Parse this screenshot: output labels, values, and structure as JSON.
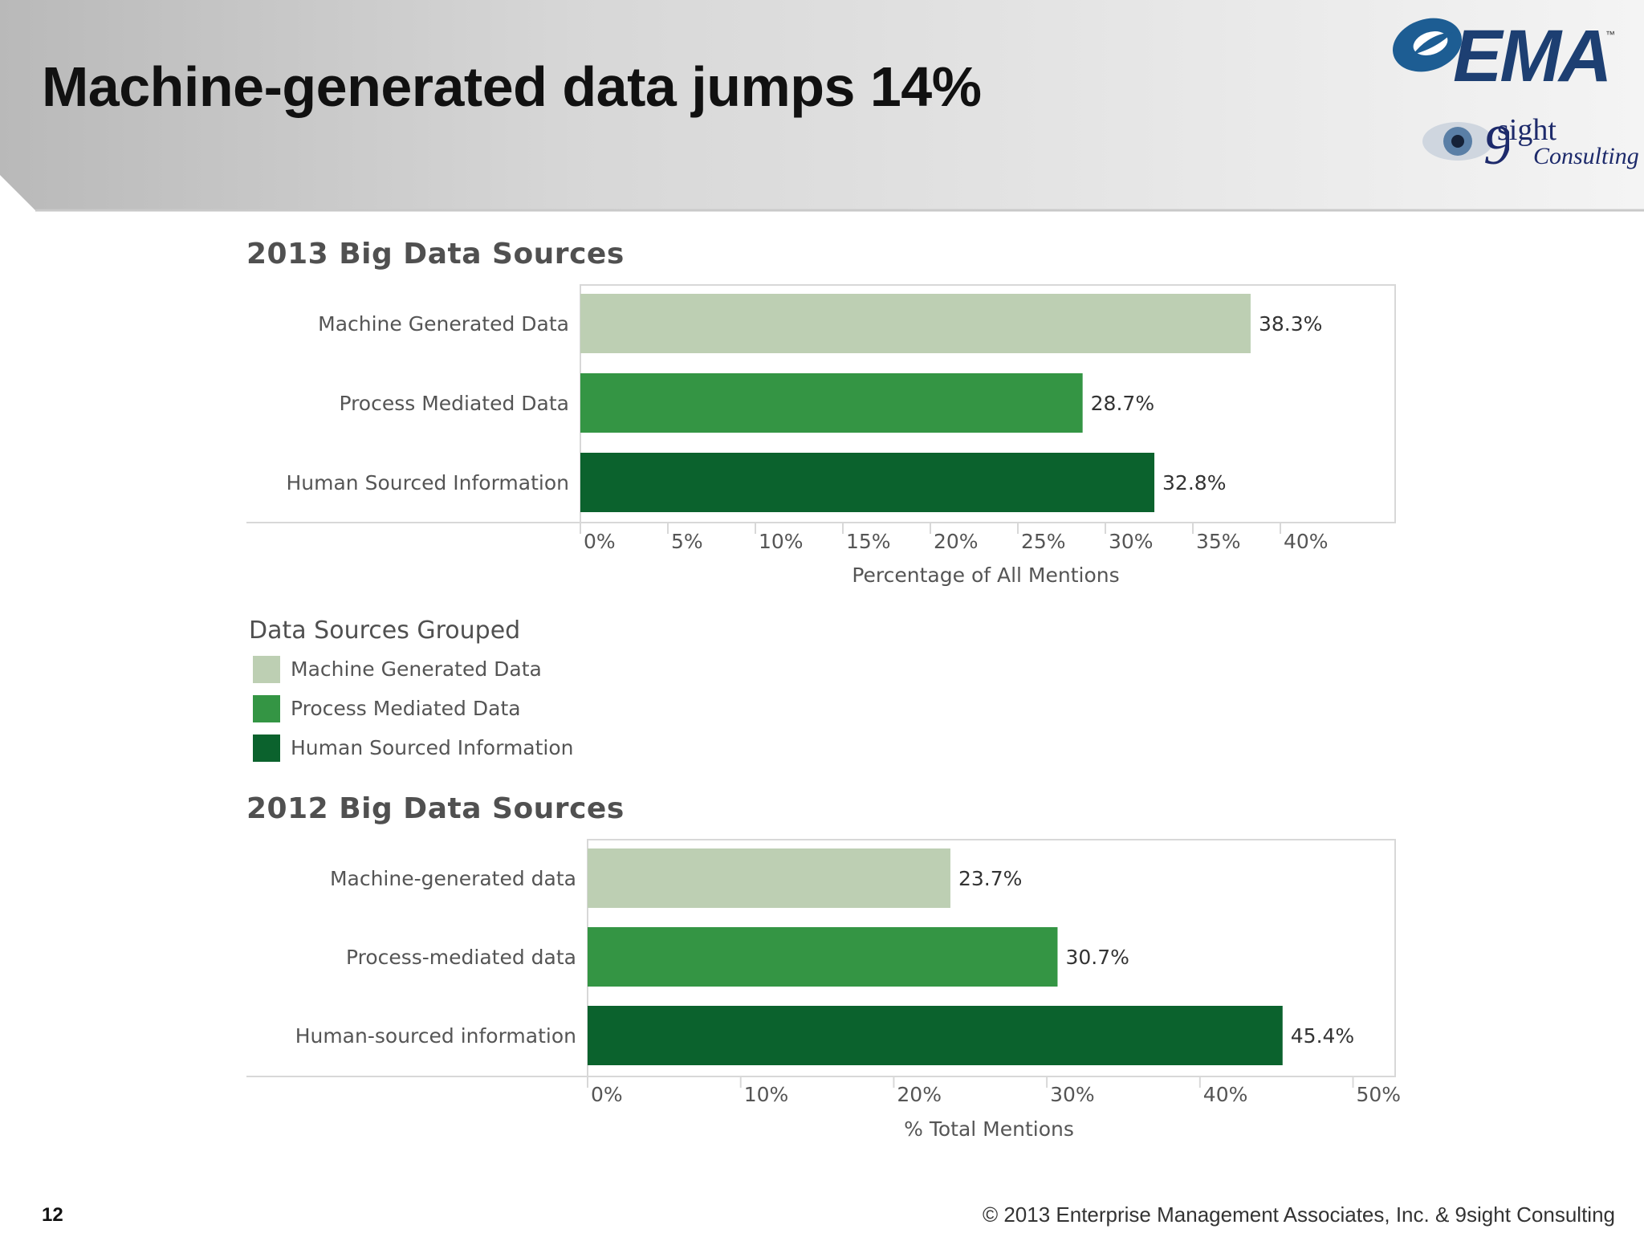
{
  "slide": {
    "title": "Machine-generated data jumps 14%",
    "page_number": "12",
    "copyright": "© 2013 Enterprise Management Associates, Inc. & 9sight Consulting"
  },
  "logos": {
    "ema": {
      "text": "EMA",
      "tm": "™",
      "color": "#1d3f72"
    },
    "ninesight": {
      "line1": "sight",
      "line2": "Consulting",
      "color": "#1d2a6b"
    }
  },
  "colors": {
    "machine": "#bdcfb3",
    "process": "#349544",
    "human": "#0b622d",
    "frame": "#d8d8d8"
  },
  "legend": {
    "title": "Data Sources Grouped",
    "items": [
      {
        "label": "Machine Generated Data",
        "color": "#bdcfb3"
      },
      {
        "label": "Process Mediated Data",
        "color": "#349544"
      },
      {
        "label": "Human Sourced Information",
        "color": "#0b622d"
      }
    ]
  },
  "chart_data": [
    {
      "type": "bar",
      "orientation": "horizontal",
      "title": "2013 Big Data Sources",
      "xlabel": "Percentage of All Mentions",
      "ylabel": "",
      "categories": [
        "Machine Generated Data",
        "Process Mediated Data",
        "Human Sourced Information"
      ],
      "values": [
        38.3,
        28.7,
        32.8
      ],
      "data_labels": [
        "38.3%",
        "28.7%",
        "32.8%"
      ],
      "colors": [
        "#bdcfb3",
        "#349544",
        "#0b622d"
      ],
      "xlim": [
        0,
        40
      ],
      "ticks": [
        0,
        5,
        10,
        15,
        20,
        25,
        30,
        35,
        40
      ],
      "tick_labels": [
        "0%",
        "5%",
        "10%",
        "15%",
        "20%",
        "25%",
        "30%",
        "35%",
        "40%"
      ],
      "grid": false
    },
    {
      "type": "bar",
      "orientation": "horizontal",
      "title": "2012 Big Data Sources",
      "xlabel": "% Total Mentions",
      "ylabel": "",
      "categories": [
        "Machine-generated data",
        "Process-mediated data",
        "Human-sourced information"
      ],
      "values": [
        23.7,
        30.7,
        45.4
      ],
      "data_labels": [
        "23.7%",
        "30.7%",
        "45.4%"
      ],
      "colors": [
        "#bdcfb3",
        "#349544",
        "#0b622d"
      ],
      "xlim": [
        0,
        50
      ],
      "ticks": [
        0,
        10,
        20,
        30,
        40,
        50
      ],
      "tick_labels": [
        "0%",
        "10%",
        "20%",
        "30%",
        "40%",
        "50%"
      ],
      "grid": false
    }
  ]
}
